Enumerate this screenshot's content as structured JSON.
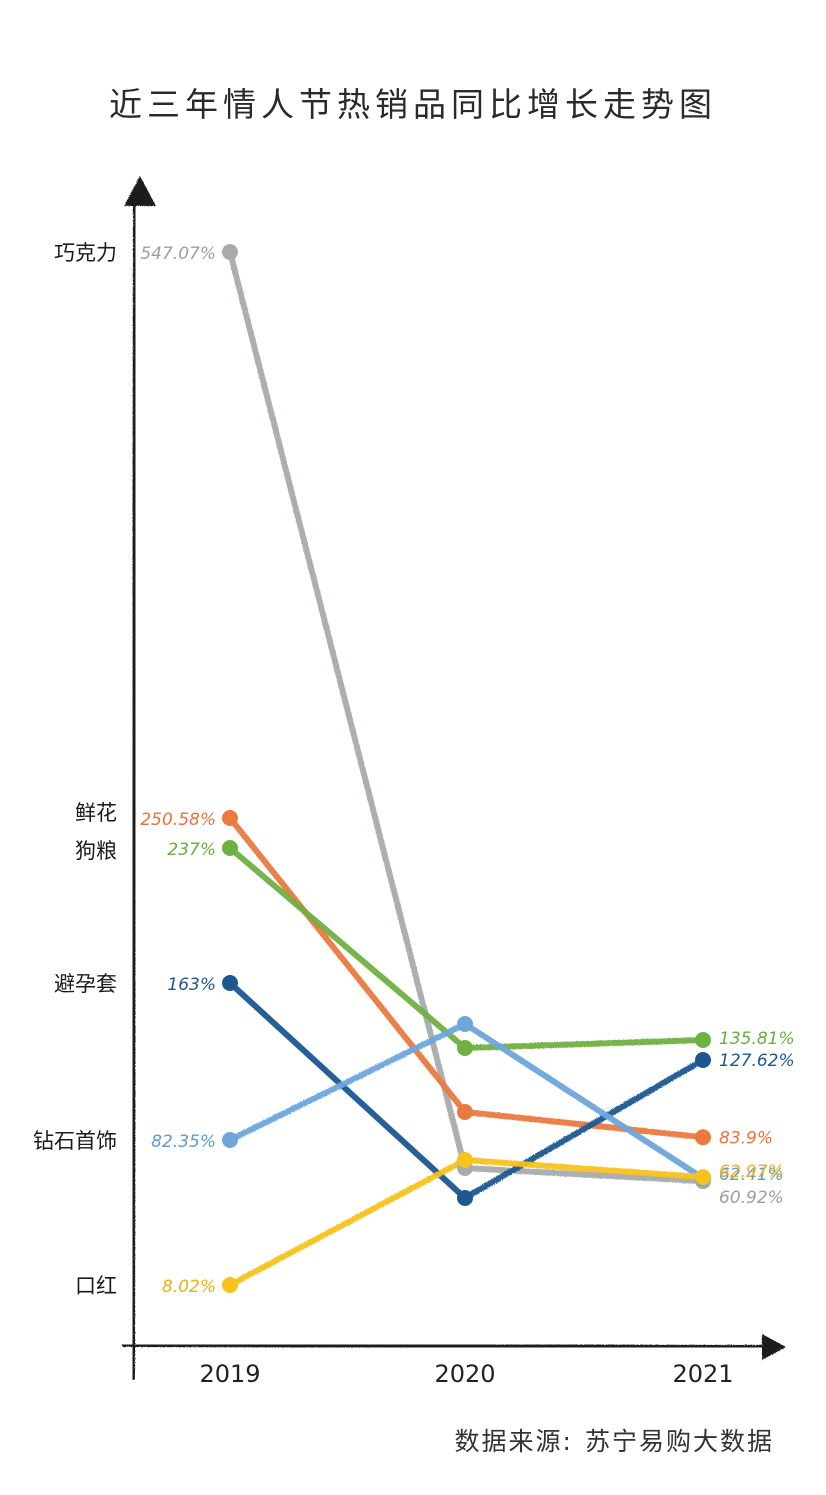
{
  "title": "近三年情人节热销品同比增长走势图",
  "source": {
    "label": "数据来源:",
    "value": "苏宁易购大数据"
  },
  "chart_data": {
    "type": "line",
    "title": "近三年情人节热销品同比增长走势图",
    "x": [
      "2019",
      "2020",
      "2021"
    ],
    "ylabel": "",
    "xlabel": "",
    "grid": false,
    "series": [
      {
        "name": "巧克力",
        "color": "#a7abab",
        "values": [
          547.07,
          20,
          60.92
        ],
        "labels": [
          "547.07%",
          "",
          "60.92%"
        ],
        "label_color": "#9b9fa0"
      },
      {
        "name": "鲜花",
        "color": "#ec7a3f",
        "values": [
          250.58,
          110,
          83.9
        ],
        "labels": [
          "250.58%",
          "",
          "83.9%"
        ],
        "label_color": "#e8743a"
      },
      {
        "name": "狗粮",
        "color": "#6fb043",
        "values": [
          237,
          160,
          135.81
        ],
        "labels": [
          "237%",
          "",
          "135.81%"
        ],
        "label_color": "#69ad3d"
      },
      {
        "name": "避孕套",
        "color": "#1f5891",
        "values": [
          163,
          15,
          127.62
        ],
        "labels": [
          "163%",
          "",
          "127.62%"
        ],
        "label_color": "#1f5891"
      },
      {
        "name": "钻石首饰",
        "color": "#6ea6dc",
        "values": [
          82.35,
          170,
          62.41
        ],
        "labels": [
          "82.35%",
          "",
          "62.41%"
        ],
        "label_color": "#5c9ad6"
      },
      {
        "name": "口红",
        "color": "#f7c21c",
        "values": [
          8.02,
          90,
          62.97
        ],
        "labels": [
          "8.02%",
          "",
          "62.97%"
        ],
        "label_color": "#eab40c"
      }
    ],
    "y_category_labels": [
      {
        "text": "巧克力",
        "series": 0
      },
      {
        "text": "鲜花",
        "series": 1
      },
      {
        "text": "狗粮",
        "series": 2
      },
      {
        "text": "避孕套",
        "series": 3
      },
      {
        "text": "钻石首饰",
        "series": 4
      },
      {
        "text": "口红",
        "series": 5
      }
    ]
  }
}
